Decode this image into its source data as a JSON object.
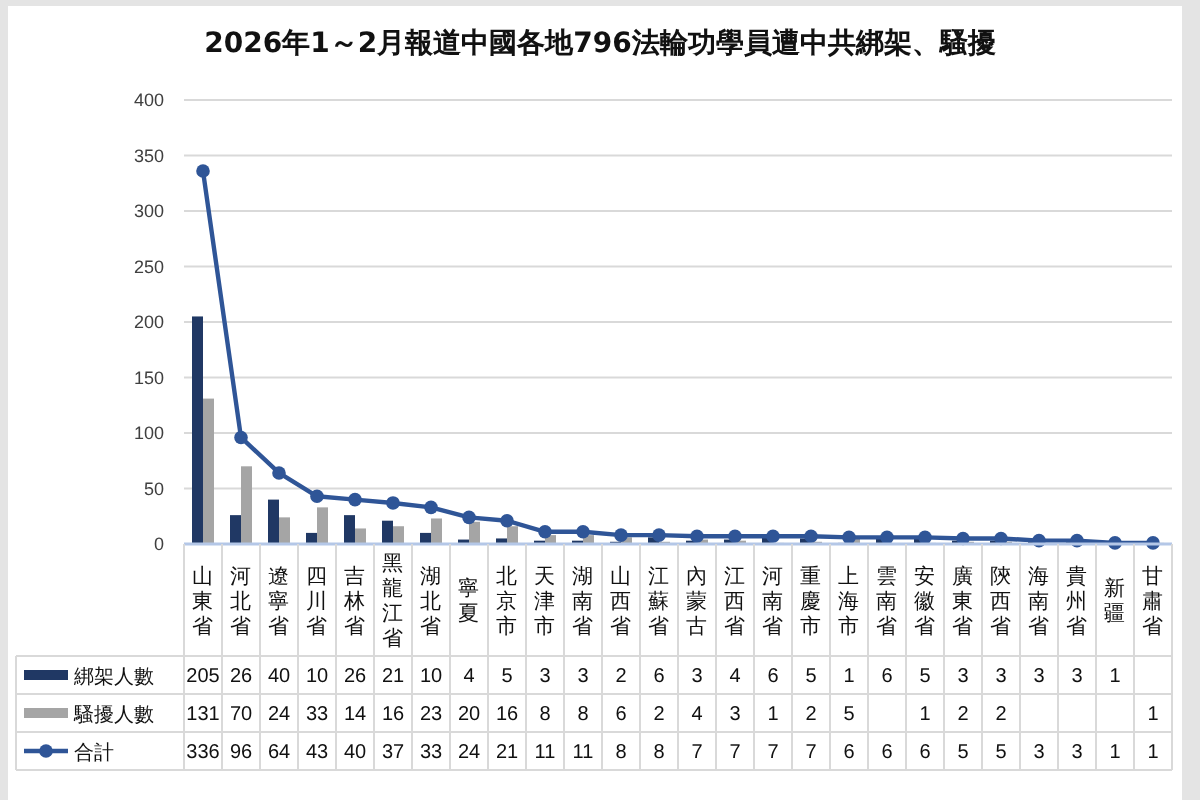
{
  "chart_data": {
    "type": "bar",
    "title": "2026年1～2月報道中國各地796法輪功學員遭中共綁架、騷擾",
    "categories": [
      "山東省",
      "河北省",
      "遼寧省",
      "四川省",
      "吉林省",
      "黑龍江省",
      "湖北省",
      "寧夏",
      "北京市",
      "天津市",
      "湖南省",
      "山西省",
      "江蘇省",
      "內蒙古",
      "江西省",
      "河南省",
      "重慶市",
      "上海市",
      "雲南省",
      "安徽省",
      "廣東省",
      "陝西省",
      "海南省",
      "貴州省",
      "新疆",
      "甘肅省"
    ],
    "series": [
      {
        "name": "綁架人數",
        "color": "#203864",
        "values": [
          205,
          26,
          40,
          10,
          26,
          21,
          10,
          4,
          5,
          3,
          3,
          2,
          6,
          3,
          4,
          6,
          5,
          1,
          6,
          5,
          3,
          3,
          3,
          3,
          1,
          null
        ]
      },
      {
        "name": "騷擾人數",
        "color": "#a5a5a5",
        "values": [
          131,
          70,
          24,
          33,
          14,
          16,
          23,
          20,
          16,
          8,
          8,
          6,
          2,
          4,
          3,
          1,
          2,
          5,
          null,
          1,
          2,
          2,
          null,
          null,
          null,
          1
        ]
      },
      {
        "name": "合計",
        "type": "line",
        "color": "#2f5597",
        "values": [
          336,
          96,
          64,
          43,
          40,
          37,
          33,
          24,
          21,
          11,
          11,
          8,
          8,
          7,
          7,
          7,
          7,
          6,
          6,
          6,
          5,
          5,
          3,
          3,
          1,
          1
        ]
      }
    ],
    "ylim": [
      0,
      400
    ],
    "yticks": [
      0,
      50,
      100,
      150,
      200,
      250,
      300,
      350,
      400
    ],
    "grid": "y",
    "legend": "bottom",
    "marker": "circle",
    "data_labels": true
  }
}
